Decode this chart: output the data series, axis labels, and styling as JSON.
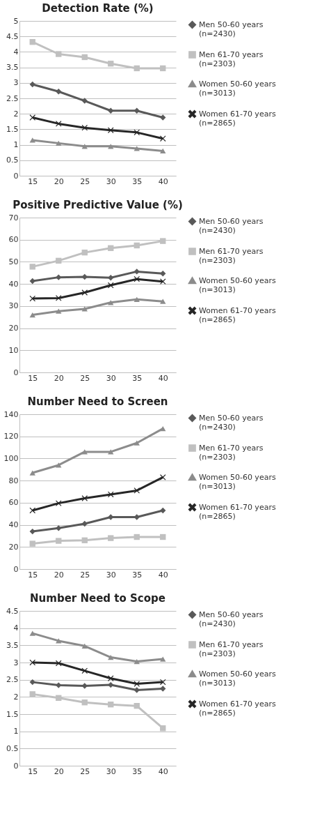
{
  "chart_data": [
    {
      "type": "line",
      "title": "Detection Rate (%)",
      "categories": [
        "15",
        "20",
        "25",
        "30",
        "35",
        "40"
      ],
      "ylim": [
        0,
        5
      ],
      "yticks": [
        0,
        0.5,
        1,
        1.5,
        2,
        2.5,
        3,
        3.5,
        4,
        4.5,
        5
      ],
      "grid": "y",
      "legend": "right",
      "line_style": "solid",
      "series": [
        {
          "name": "Men 50-60 years (n=2430)",
          "color": "#595959",
          "marker": "diamond",
          "values": [
            2.95,
            2.72,
            2.42,
            2.1,
            2.1,
            1.88
          ]
        },
        {
          "name": "Men 61-70 years (n=2303)",
          "color": "#c0c0c0",
          "marker": "square",
          "values": [
            4.32,
            3.93,
            3.83,
            3.62,
            3.47,
            3.47
          ]
        },
        {
          "name": "Women 50-60 years (n=3013)",
          "color": "#8c8c8c",
          "marker": "triangle",
          "values": [
            1.15,
            1.05,
            0.95,
            0.95,
            0.88,
            0.8
          ]
        },
        {
          "name": "Women  61-70 years (n=2865)",
          "color": "#262626",
          "marker": "cross",
          "values": [
            1.88,
            1.68,
            1.55,
            1.47,
            1.4,
            1.2
          ]
        }
      ]
    },
    {
      "type": "line",
      "title": "Positive Predictive Value (%)",
      "categories": [
        "15",
        "20",
        "25",
        "30",
        "35",
        "40"
      ],
      "ylim": [
        0,
        70
      ],
      "yticks": [
        0,
        10,
        20,
        30,
        40,
        50,
        60,
        70
      ],
      "grid": "y",
      "legend": "right",
      "line_style": "solid",
      "series": [
        {
          "name": "Men 50-60 years (n=2430)",
          "color": "#595959",
          "marker": "diamond",
          "values": [
            41.3,
            43,
            43.2,
            42.8,
            45.6,
            44.7
          ]
        },
        {
          "name": "Men 61-70 years (n=2303)",
          "color": "#c0c0c0",
          "marker": "square",
          "values": [
            47.8,
            50.5,
            54.2,
            56.2,
            57.4,
            59.4
          ]
        },
        {
          "name": "Women 50-60 years (n=3013)",
          "color": "#8c8c8c",
          "marker": "triangle",
          "values": [
            26,
            27.7,
            28.7,
            31.6,
            33,
            32.1
          ]
        },
        {
          "name": "Women  61-70 years (n=2865)",
          "color": "#262626",
          "marker": "cross",
          "values": [
            33.4,
            33.6,
            36.1,
            39.4,
            42.2,
            41.1
          ]
        }
      ]
    },
    {
      "type": "line",
      "title": "Number Need to Screen",
      "categories": [
        "15",
        "20",
        "25",
        "30",
        "35",
        "40"
      ],
      "ylim": [
        0,
        140
      ],
      "yticks": [
        0,
        20,
        40,
        60,
        80,
        100,
        120,
        140
      ],
      "grid": "y",
      "legend": "right",
      "line_style": "solid",
      "series": [
        {
          "name": "Men 50-60 years (n=2430)",
          "color": "#595959",
          "marker": "diamond",
          "values": [
            34,
            37,
            41,
            47,
            47,
            53
          ]
        },
        {
          "name": "Men 61-70 years (n=2303)",
          "color": "#c0c0c0",
          "marker": "square",
          "values": [
            23,
            25.5,
            26,
            28,
            29,
            29
          ]
        },
        {
          "name": "Women 50-60 years (n=3013)",
          "color": "#8c8c8c",
          "marker": "triangle",
          "values": [
            87,
            94,
            106,
            106,
            114,
            127
          ]
        },
        {
          "name": "Women  61-70 years (n=2865)",
          "color": "#262626",
          "marker": "cross",
          "values": [
            53,
            59.5,
            64,
            67.5,
            71,
            83
          ]
        }
      ]
    },
    {
      "type": "line",
      "title": "Number Need to Scope",
      "categories": [
        "15",
        "20",
        "25",
        "30",
        "35",
        "40"
      ],
      "ylim": [
        0,
        4.5
      ],
      "yticks": [
        0,
        0.5,
        1,
        1.5,
        2,
        2.5,
        3,
        3.5,
        4,
        4.5
      ],
      "grid": "y",
      "legend": "right",
      "line_style": "solid",
      "series": [
        {
          "name": "Men 50-60 years (n=2430)",
          "color": "#595959",
          "marker": "diamond",
          "values": [
            2.43,
            2.34,
            2.32,
            2.35,
            2.2,
            2.24
          ]
        },
        {
          "name": "Men 61-70 years (n=2303)",
          "color": "#c0c0c0",
          "marker": "square",
          "values": [
            2.08,
            1.97,
            1.84,
            1.78,
            1.74,
            1.09
          ]
        },
        {
          "name": "Women 50-60 years (n=3013)",
          "color": "#8c8c8c",
          "marker": "triangle",
          "values": [
            3.85,
            3.63,
            3.48,
            3.15,
            3.03,
            3.1
          ]
        },
        {
          "name": "Women  61-70 years (n=2865)",
          "color": "#262626",
          "marker": "cross",
          "values": [
            3.0,
            2.98,
            2.76,
            2.54,
            2.38,
            2.43
          ]
        }
      ]
    }
  ]
}
